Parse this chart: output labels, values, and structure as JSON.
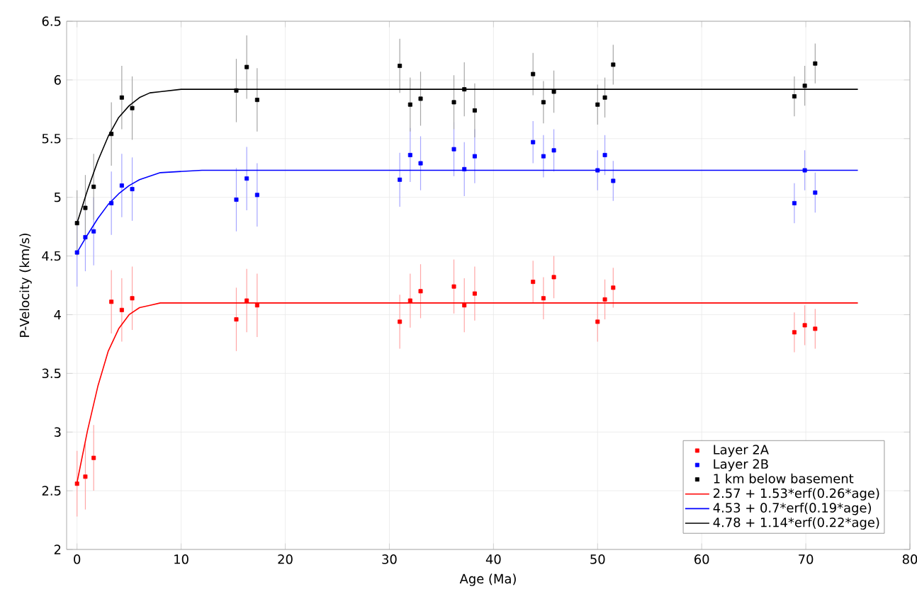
{
  "chart_data": {
    "type": "scatter",
    "xlabel": "Age (Ma)",
    "ylabel": "P-Velocity (km/s)",
    "xlim": [
      -1,
      80
    ],
    "ylim": [
      2,
      6.5
    ],
    "xticks": [
      0,
      10,
      20,
      30,
      40,
      50,
      60,
      70,
      80
    ],
    "yticks": [
      2,
      2.5,
      3,
      3.5,
      4,
      4.5,
      5,
      5.5,
      6,
      6.5
    ],
    "grid": true,
    "legend": "bottom right",
    "marker": "square",
    "series": [
      {
        "name": "Layer 2A",
        "color": "#ff0000",
        "x": [
          0,
          0.8,
          1.6,
          3.3,
          4.3,
          5.3,
          15.3,
          16.3,
          17.3,
          31.0,
          32.0,
          33.0,
          36.2,
          37.2,
          38.2,
          43.8,
          44.8,
          45.8,
          50.0,
          50.7,
          51.5,
          68.9,
          69.9,
          70.9
        ],
        "values": [
          2.56,
          2.62,
          2.78,
          4.11,
          4.04,
          4.14,
          3.96,
          4.12,
          4.08,
          3.94,
          4.12,
          4.2,
          4.24,
          4.08,
          4.18,
          4.28,
          4.14,
          4.32,
          3.94,
          4.13,
          4.23,
          3.85,
          3.91,
          3.88
        ],
        "errors": [
          0.28,
          0.28,
          0.28,
          0.27,
          0.27,
          0.27,
          0.27,
          0.27,
          0.27,
          0.23,
          0.23,
          0.23,
          0.23,
          0.23,
          0.23,
          0.18,
          0.18,
          0.18,
          0.17,
          0.17,
          0.17,
          0.17,
          0.17,
          0.17
        ]
      },
      {
        "name": "Layer 2B",
        "color": "#0000ff",
        "x": [
          0,
          0.8,
          1.6,
          3.3,
          4.3,
          5.3,
          15.3,
          16.3,
          17.3,
          31.0,
          32.0,
          33.0,
          36.2,
          37.2,
          38.2,
          43.8,
          44.8,
          45.8,
          50.0,
          50.7,
          51.5,
          68.9,
          69.9,
          70.9
        ],
        "values": [
          4.53,
          4.66,
          4.71,
          4.95,
          5.1,
          5.07,
          4.98,
          5.16,
          5.02,
          5.15,
          5.36,
          5.29,
          5.41,
          5.24,
          5.35,
          5.47,
          5.35,
          5.4,
          5.23,
          5.36,
          5.14,
          4.95,
          5.23,
          5.04
        ],
        "errors": [
          0.29,
          0.29,
          0.29,
          0.27,
          0.27,
          0.27,
          0.27,
          0.27,
          0.27,
          0.23,
          0.23,
          0.23,
          0.23,
          0.23,
          0.23,
          0.18,
          0.18,
          0.18,
          0.17,
          0.17,
          0.17,
          0.17,
          0.17,
          0.17
        ]
      },
      {
        "name": "1 km below basement",
        "color": "#000000",
        "x": [
          0,
          0.8,
          1.6,
          3.3,
          4.3,
          5.3,
          15.3,
          16.3,
          17.3,
          31.0,
          32.0,
          33.0,
          36.2,
          37.2,
          38.2,
          43.8,
          44.8,
          45.8,
          50.0,
          50.7,
          51.5,
          68.9,
          69.9,
          70.9
        ],
        "values": [
          4.78,
          4.91,
          5.09,
          5.54,
          5.85,
          5.76,
          5.91,
          6.11,
          5.83,
          6.12,
          5.79,
          5.84,
          5.81,
          5.92,
          5.74,
          6.05,
          5.81,
          5.9,
          5.79,
          5.85,
          6.13,
          5.86,
          5.95,
          6.14
        ],
        "errors": [
          0.28,
          0.28,
          0.28,
          0.27,
          0.27,
          0.27,
          0.27,
          0.27,
          0.27,
          0.23,
          0.23,
          0.23,
          0.23,
          0.23,
          0.23,
          0.18,
          0.18,
          0.18,
          0.17,
          0.17,
          0.17,
          0.17,
          0.17,
          0.17
        ]
      },
      {
        "name": "2.57 + 1.53*erf(0.26*age)",
        "type": "line",
        "marker": "none",
        "color": "#ff0000",
        "x": [
          0,
          1,
          2,
          3,
          4,
          5,
          6,
          7,
          8,
          10,
          75
        ],
        "values": [
          2.57,
          3.01,
          3.39,
          3.69,
          3.88,
          4.0,
          4.06,
          4.08,
          4.1,
          4.1,
          4.1
        ]
      },
      {
        "name": "4.53 + 0.7*erf(0.19*age)",
        "type": "line",
        "marker": "none",
        "color": "#0000ff",
        "x": [
          0,
          1,
          2,
          3,
          4,
          5,
          6,
          8,
          10,
          12,
          75
        ],
        "values": [
          4.53,
          4.68,
          4.82,
          4.94,
          5.03,
          5.1,
          5.15,
          5.21,
          5.22,
          5.23,
          5.23
        ]
      },
      {
        "name": "4.78 + 1.14*erf(0.22*age)",
        "type": "line",
        "marker": "none",
        "color": "#000000",
        "x": [
          0,
          1,
          2,
          3,
          4,
          5,
          6,
          7,
          8,
          10,
          12,
          75
        ],
        "values": [
          4.78,
          5.06,
          5.31,
          5.52,
          5.68,
          5.78,
          5.85,
          5.89,
          5.9,
          5.92,
          5.92,
          5.92
        ]
      }
    ]
  }
}
